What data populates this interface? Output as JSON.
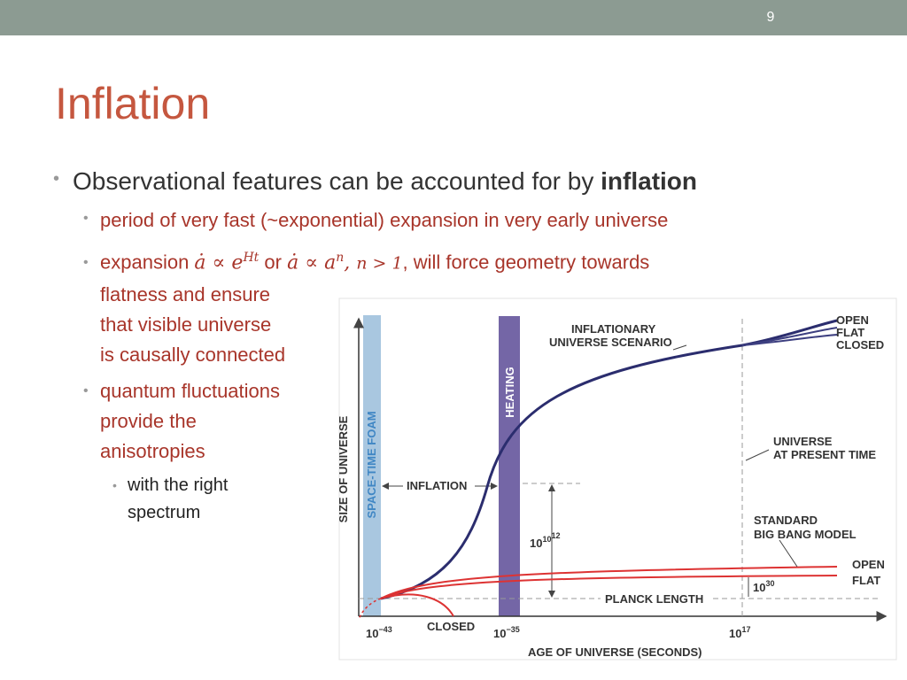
{
  "slide_number": "9",
  "title": "Inflation",
  "bullets": [
    {
      "text": "Observational features can be accounted for by ",
      "bold": "inflation"
    },
    {
      "text": "period of very fast (~exponential) expansion in very early universe"
    },
    {
      "text": "expansion ",
      "math_1": "ȧ ∝ e",
      "sup_1": "Ht",
      "text_2": " or ",
      "math_2": "ȧ ∝ a",
      "sup_2": "n",
      "sep": ", ",
      "math_3": "n > 1",
      "text_3": ", will force geometry towards",
      "lines": [
        "flatness and ensure",
        "that visible universe",
        "is causally connected"
      ]
    },
    {
      "lines": [
        "quantum fluctuations",
        "provide the",
        "anisotropies"
      ]
    },
    {
      "lines": [
        "with the right",
        "spectrum"
      ]
    }
  ],
  "figure": {
    "y_axis": "SIZE OF UNIVERSE",
    "x_axis": "AGE OF UNIVERSE (SECONDS)",
    "foam": "SPACE-TIME FOAM",
    "heating": "HEATING",
    "inflationary": [
      "INFLATIONARY",
      "UNIVERSE SCENARIO"
    ],
    "top_ends": [
      "OPEN",
      "FLAT",
      "CLOSED"
    ],
    "present": [
      "UNIVERSE",
      "AT PRESENT TIME"
    ],
    "standard": [
      "STANDARD",
      "BIG BANG MODEL"
    ],
    "bottom_ends": [
      "OPEN",
      "FLAT"
    ],
    "inflation": "INFLATION",
    "planck": "PLANCK LENGTH",
    "closed": "CLOSED",
    "growth": {
      "base": "10",
      "exp": "10",
      "exp2": "12"
    },
    "standard_growth": {
      "base": "10",
      "exp": "30"
    },
    "x_ticks": [
      {
        "base": "10",
        "exp": "−43"
      },
      {
        "base": "10",
        "exp": "−35"
      },
      {
        "base": "10",
        "exp": "17"
      }
    ]
  }
}
